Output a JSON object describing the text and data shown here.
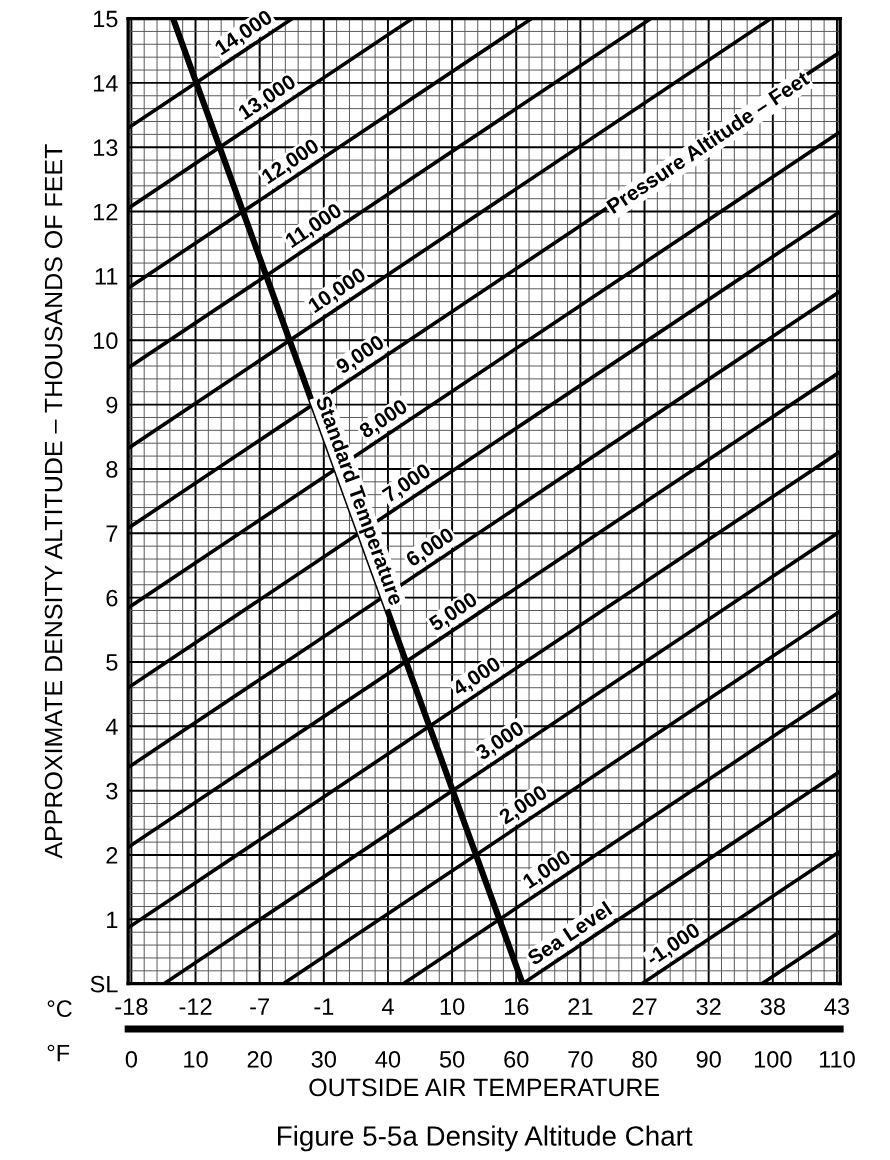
{
  "chart_data": {
    "type": "line",
    "title": "Figure 5-5a Density Altitude Chart",
    "xlabel": "OUTSIDE AIR TEMPERATURE",
    "ylabel": "APPROXIMATE DENSITY ALTITUDE – THOUSANDS OF FEET",
    "xlim": [
      -0.5,
      110.5
    ],
    "xticks": [
      0,
      10,
      20,
      30,
      40,
      50,
      60,
      70,
      80,
      90,
      100,
      110
    ],
    "x2lim": [
      -18.06,
      43.61
    ],
    "x2ticks": [
      {
        "value": -17.78,
        "label": "-18"
      },
      {
        "value": -12.22,
        "label": "-12"
      },
      {
        "value": -6.67,
        "label": "-7"
      },
      {
        "value": -1.11,
        "label": "-1"
      },
      {
        "value": 4.44,
        "label": "4"
      },
      10,
      {
        "value": 15.56,
        "label": "16"
      },
      {
        "value": 21.11,
        "label": "21"
      },
      {
        "value": 26.67,
        "label": "27"
      },
      {
        "value": 32.22,
        "label": "32"
      },
      {
        "value": 37.78,
        "label": "38"
      },
      {
        "value": 43.33,
        "label": "43"
      }
    ],
    "ylim": [
      0,
      15
    ],
    "yticks": [
      {
        "value": 0,
        "label": "SL"
      },
      1,
      2,
      3,
      4,
      5,
      6,
      7,
      8,
      9,
      10,
      11,
      12,
      13,
      14,
      15
    ],
    "grid": true,
    "legend": false,
    "marker": "none",
    "line_style": "solid",
    "annotations": [
      "Pressure Altitude – Feet",
      "°C",
      "°F"
    ],
    "series": [
      {
        "name": "Standard Temperature",
        "color": "#000000",
        "x": [
          61,
          6.5
        ],
        "values": [
          0,
          15
        ]
      },
      {
        "name": "14,000",
        "color": "#000000",
        "x": [
          -0.5,
          25.1
        ],
        "values": [
          13.3,
          15
        ]
      },
      {
        "name": "13,000",
        "color": "#000000",
        "x": [
          -0.5,
          43.8
        ],
        "values": [
          12.05,
          15
        ]
      },
      {
        "name": "12,000",
        "color": "#000000",
        "x": [
          -0.5,
          62.4
        ],
        "values": [
          10.81,
          15
        ]
      },
      {
        "name": "11,000",
        "color": "#000000",
        "x": [
          -0.5,
          81.0
        ],
        "values": [
          9.57,
          15
        ]
      },
      {
        "name": "10,000",
        "color": "#000000",
        "x": [
          -0.5,
          99.7
        ],
        "values": [
          8.32,
          15
        ]
      },
      {
        "name": "9,000",
        "color": "#000000",
        "x": [
          -0.5,
          110.5
        ],
        "values": [
          7.08,
          14.48
        ]
      },
      {
        "name": "8,000",
        "color": "#000000",
        "x": [
          -0.5,
          110.5
        ],
        "values": [
          5.84,
          13.24
        ]
      },
      {
        "name": "7,000",
        "color": "#000000",
        "x": [
          -0.5,
          110.5
        ],
        "values": [
          4.6,
          12.0
        ]
      },
      {
        "name": "6,000",
        "color": "#000000",
        "x": [
          -0.5,
          110.5
        ],
        "values": [
          3.36,
          10.76
        ]
      },
      {
        "name": "5,000",
        "color": "#000000",
        "x": [
          -0.5,
          110.5
        ],
        "values": [
          2.12,
          9.51
        ]
      },
      {
        "name": "4,000",
        "color": "#000000",
        "x": [
          -0.5,
          110.5
        ],
        "values": [
          0.87,
          8.27
        ]
      },
      {
        "name": "3,000",
        "color": "#000000",
        "x": [
          5.1,
          110.5
        ],
        "values": [
          0,
          7.03
        ]
      },
      {
        "name": "2,000",
        "color": "#000000",
        "x": [
          23.7,
          110.5
        ],
        "values": [
          0,
          5.79
        ]
      },
      {
        "name": "1,000",
        "color": "#000000",
        "x": [
          42.4,
          110.5
        ],
        "values": [
          0,
          4.54
        ]
      },
      {
        "name": "Sea Level",
        "color": "#000000",
        "x": [
          61,
          110.5
        ],
        "values": [
          0,
          3.3
        ]
      },
      {
        "name": "-1,000",
        "color": "#000000",
        "x": [
          79.6,
          110.5
        ],
        "values": [
          0,
          2.06
        ]
      },
      {
        "color": "#000000",
        "x": [
          98.3,
          110.5
        ],
        "values": [
          0,
          0.81
        ]
      }
    ]
  }
}
